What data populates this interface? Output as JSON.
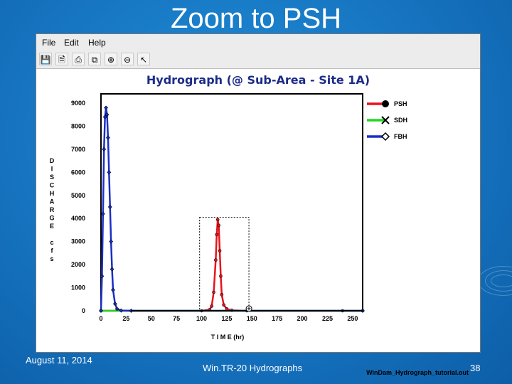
{
  "slide": {
    "title": "Zoom to PSH",
    "footer_date": "August 11, 2014",
    "footer_center": "Win.TR-20 Hydrographs",
    "page_number": "38"
  },
  "window": {
    "menu": [
      "File",
      "Edit",
      "Help"
    ],
    "toolbar_icons": [
      "save-icon",
      "print-preview-icon",
      "print-icon",
      "copy-icon",
      "zoom-in-icon",
      "zoom-out-icon",
      "pointer-icon"
    ],
    "file_name": "WinDam_Hydrograph_tutorial.out"
  },
  "chart_data": {
    "type": "line",
    "title": "Hydrograph (@ Sub-Area - Site 1A)",
    "xlabel": "T I M E (hr)",
    "ylabel": "D I S C H A R G E   c f s",
    "ylabel_letters": [
      "D",
      "I",
      "S",
      "C",
      "H",
      "A",
      "R",
      "G",
      "E",
      "",
      "c",
      "f",
      "s"
    ],
    "xlim": [
      0,
      260
    ],
    "ylim": [
      0,
      9400
    ],
    "x_ticks": [
      0,
      25,
      50,
      75,
      100,
      125,
      150,
      175,
      200,
      225,
      250
    ],
    "y_ticks": [
      0,
      1000,
      2000,
      3000,
      4000,
      5000,
      6000,
      7000,
      8000,
      9000
    ],
    "grid": false,
    "legend_position": "right",
    "zoom_box": {
      "x": [
        98,
        147
      ],
      "y": [
        0,
        4050
      ]
    },
    "series": [
      {
        "name": "PSH",
        "color": "#e8141b",
        "marker": "circle",
        "x": [
          0,
          100,
          108,
          110,
          112,
          114,
          115,
          116,
          117,
          118,
          119,
          120,
          122,
          125,
          130,
          145,
          240,
          260
        ],
        "y": [
          0,
          0,
          50,
          200,
          800,
          2200,
          3300,
          3950,
          3700,
          2600,
          1500,
          700,
          250,
          80,
          20,
          0,
          0,
          0
        ]
      },
      {
        "name": "SDH",
        "color": "#1fd81f",
        "marker": "x",
        "x": [
          0,
          260
        ],
        "y": [
          0,
          0
        ]
      },
      {
        "name": "FBH",
        "color": "#1a2fc8",
        "marker": "diamond",
        "x": [
          0,
          1,
          2,
          3,
          4,
          5,
          6,
          7,
          8,
          9,
          10,
          11,
          12,
          14,
          16,
          20,
          30,
          260
        ],
        "y": [
          0,
          1500,
          4200,
          7000,
          8400,
          8800,
          8500,
          7500,
          6000,
          4500,
          3000,
          1800,
          900,
          300,
          80,
          10,
          0,
          0
        ]
      }
    ]
  }
}
